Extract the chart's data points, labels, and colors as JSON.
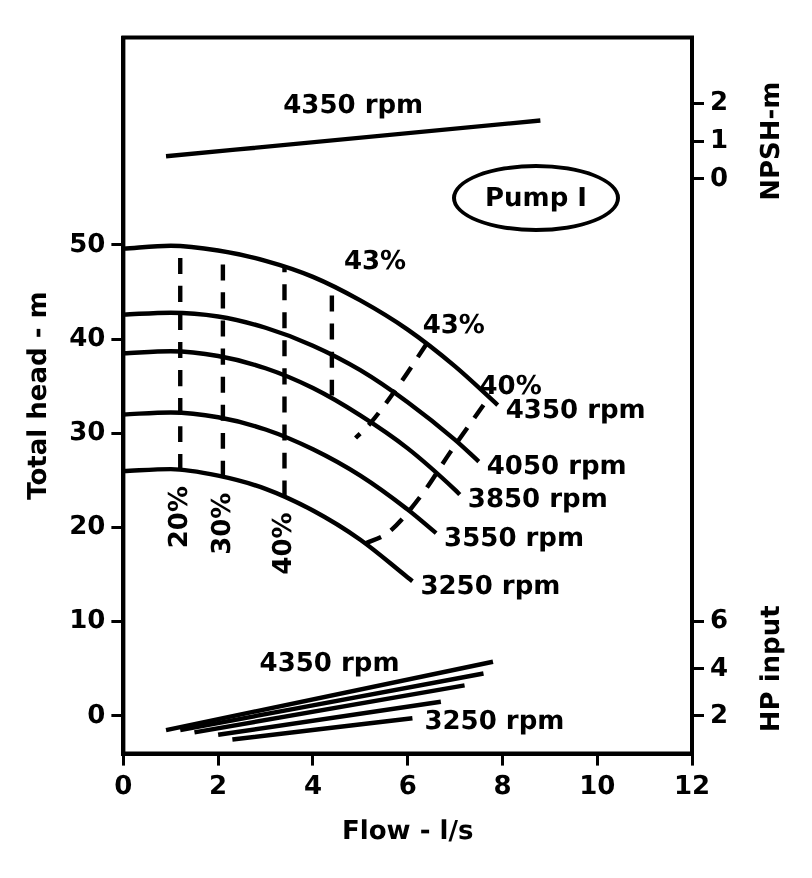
{
  "chart_data": {
    "type": "line",
    "xlabel": "Flow - l/s",
    "ylabel": "Total head - m",
    "y2label": "NPSH-m",
    "y3label": "HP input",
    "xlim": [
      0,
      12
    ],
    "xticks": [
      0,
      2,
      4,
      6,
      8,
      10,
      12
    ],
    "ylim": [
      -4,
      72
    ],
    "yticks": [
      0,
      10,
      20,
      30,
      40,
      50
    ],
    "y2lim": [
      -15.25,
      3.75
    ],
    "y2ticks": [
      0,
      1,
      2
    ],
    "y3lim": [
      0.4,
      30.8
    ],
    "y3ticks": [
      2,
      4,
      6
    ],
    "grid": false,
    "legend": false,
    "marker": "none",
    "series": [
      {
        "name": "4350 rpm",
        "color": "#000000",
        "x": [
          0,
          1,
          2,
          3,
          4,
          5,
          6,
          7,
          7.9
        ],
        "values": [
          49.6,
          49.9,
          49.4,
          48.3,
          46.6,
          44.1,
          41.0,
          37.1,
          33.0
        ]
      },
      {
        "name": "4050 rpm",
        "color": "#000000",
        "x": [
          0,
          1,
          2,
          3,
          4,
          5,
          6,
          7,
          7.5
        ],
        "values": [
          42.6,
          42.8,
          42.4,
          41.2,
          39.3,
          36.7,
          33.3,
          29.3,
          27.0
        ]
      },
      {
        "name": "3850 rpm",
        "color": "#000000",
        "x": [
          0,
          1,
          2,
          3,
          4,
          5,
          6,
          7,
          7.1
        ],
        "values": [
          38.5,
          38.7,
          38.2,
          36.9,
          34.8,
          31.9,
          28.4,
          24.0,
          23.5
        ]
      },
      {
        "name": "3550 rpm",
        "color": "#000000",
        "x": [
          0,
          1,
          2,
          3,
          4,
          5,
          6,
          6.6
        ],
        "values": [
          32.0,
          32.2,
          31.7,
          30.4,
          28.3,
          25.5,
          21.9,
          19.4
        ]
      },
      {
        "name": "3250 rpm",
        "color": "#000000",
        "x": [
          0,
          1,
          2,
          3,
          4,
          5,
          6,
          6.1
        ],
        "values": [
          26.0,
          26.2,
          25.5,
          24.1,
          21.8,
          18.7,
          14.7,
          14.3
        ]
      },
      {
        "name": "20%",
        "color": "#000000",
        "line_style": "dashed",
        "x": [
          1.2,
          1.2
        ],
        "values": [
          26.1,
          49.8
        ]
      },
      {
        "name": "30%",
        "color": "#000000",
        "line_style": "dashed",
        "x": [
          2.1,
          2.1
        ],
        "values": [
          25.4,
          49.4
        ]
      },
      {
        "name": "40%",
        "color": "#000000",
        "line_style": "dashed",
        "x": [
          3.4,
          3.4
        ],
        "values": [
          23.3,
          47.8
        ]
      },
      {
        "name": "43%",
        "color": "#000000",
        "line_style": "dashed",
        "x": [
          4.4,
          4.4
        ],
        "values": [
          34,
          45.6
        ]
      },
      {
        "name": "43%",
        "color": "#000000",
        "line_style": "dashed",
        "x": [
          6.4,
          5.8,
          5.2,
          4.9
        ],
        "values": [
          39.5,
          35,
          31,
          29.5
        ]
      },
      {
        "name": "40%",
        "color": "#000000",
        "line_style": "dashed",
        "x": [
          7.6,
          6.9,
          6.3,
          5.6,
          5.1
        ],
        "values": [
          33,
          28,
          23.5,
          19.5,
          18.3
        ]
      },
      {
        "name": "4350 rpm",
        "color": "#000000",
        "axis": "y2",
        "x": [
          0.9,
          8.8
        ],
        "values": [
          0.6,
          1.55
        ]
      },
      {
        "name": "4350 rpm",
        "color": "#000000",
        "axis": "y3",
        "x": [
          0.9,
          7.8
        ],
        "values": [
          1.4,
          4.3
        ]
      },
      {
        "color": "#000000",
        "axis": "y3",
        "x": [
          1.2,
          7.6
        ],
        "values": [
          1.4,
          3.8
        ]
      },
      {
        "color": "#000000",
        "axis": "y3",
        "x": [
          1.5,
          7.2
        ],
        "values": [
          1.3,
          3.3
        ]
      },
      {
        "color": "#000000",
        "axis": "y3",
        "x": [
          2.0,
          6.7
        ],
        "values": [
          1.2,
          2.6
        ]
      },
      {
        "name": "3250 rpm",
        "color": "#000000",
        "axis": "y3",
        "x": [
          2.3,
          6.1
        ],
        "values": [
          1.0,
          1.9
        ]
      }
    ],
    "annotations": [
      "Pump I"
    ]
  }
}
